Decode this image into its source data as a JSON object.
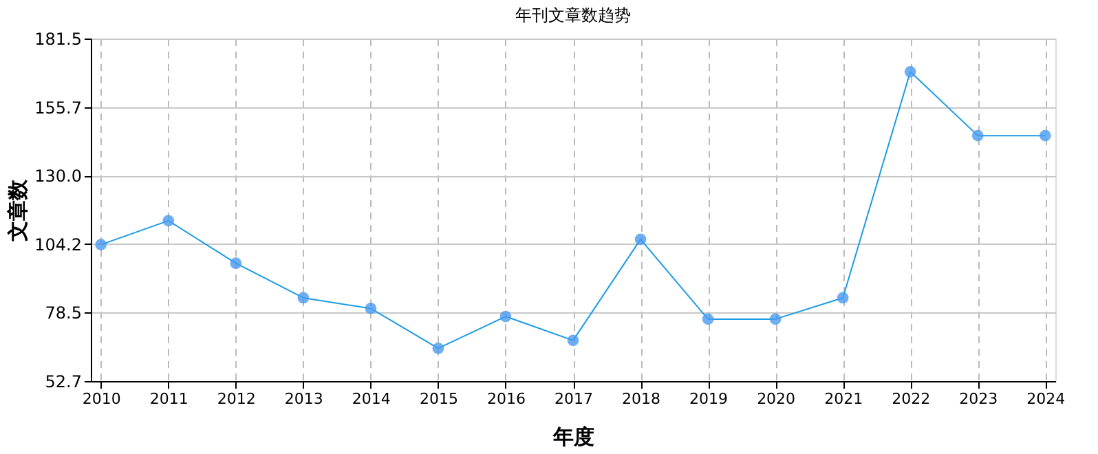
{
  "chart_data": {
    "type": "line",
    "title": "年刊文章数趋势",
    "xlabel": "年度",
    "ylabel": "文章数",
    "categories": [
      "2010",
      "2011",
      "2012",
      "2013",
      "2014",
      "2015",
      "2016",
      "2017",
      "2018",
      "2019",
      "2020",
      "2021",
      "2022",
      "2023",
      "2024"
    ],
    "series": [
      {
        "color": "#1a9be6",
        "values": [
          104,
          113,
          97,
          84,
          80,
          65,
          77,
          68,
          106,
          76,
          76,
          84,
          169,
          145,
          145
        ]
      }
    ],
    "ylim": [
      52.7,
      181.5
    ],
    "yticks": [
      {
        "value": 52.7,
        "label": "52.7"
      },
      {
        "value": 78.5,
        "label": "78.5"
      },
      {
        "value": 104.2,
        "label": "104.2"
      },
      {
        "value": 130.0,
        "label": "130.0"
      },
      {
        "value": 155.7,
        "label": "155.7"
      },
      {
        "value": 181.5,
        "label": "181.5"
      }
    ],
    "grid": true,
    "marker": "circle",
    "line_style": "solid",
    "legend": false
  }
}
